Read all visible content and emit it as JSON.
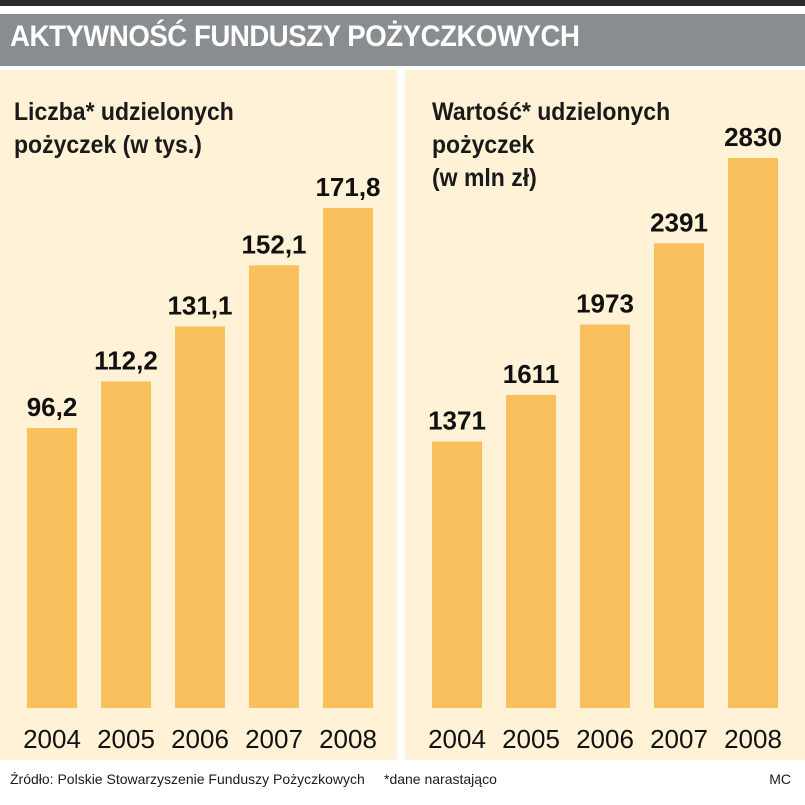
{
  "title": "AKTYWNOŚĆ FUNDUSZY POŻYCZKOWYCH",
  "footer": {
    "source": "Źródło: Polskie Stowarzyszenie Funduszy Pożyczkowych",
    "note": "*dane narastająco",
    "credit": "MC"
  },
  "colors": {
    "bar": "#fbc05e",
    "panel_background": "#fff2d6",
    "title_bar": "#8a8d90"
  },
  "chart_data": [
    {
      "type": "bar",
      "title_lines": [
        "Liczba* udzielonych",
        "pożyczek (w tys.)"
      ],
      "categories": [
        "2004",
        "2005",
        "2006",
        "2007",
        "2008"
      ],
      "values": [
        96.2,
        112.2,
        131.1,
        152.1,
        171.8
      ],
      "value_labels": [
        "96,2",
        "112,2",
        "131,1",
        "152,1",
        "171,8"
      ],
      "ylim": [
        0,
        171.8
      ],
      "grid": false
    },
    {
      "type": "bar",
      "title_lines": [
        "Wartość* udzielonych",
        "pożyczek",
        "(w mln zł)"
      ],
      "categories": [
        "2004",
        "2005",
        "2006",
        "2007",
        "2008"
      ],
      "values": [
        1371,
        1611,
        1973,
        2391,
        2830
      ],
      "value_labels": [
        "1371",
        "1611",
        "1973",
        "2391",
        "2830"
      ],
      "ylim": [
        0,
        2830
      ],
      "grid": false
    }
  ]
}
